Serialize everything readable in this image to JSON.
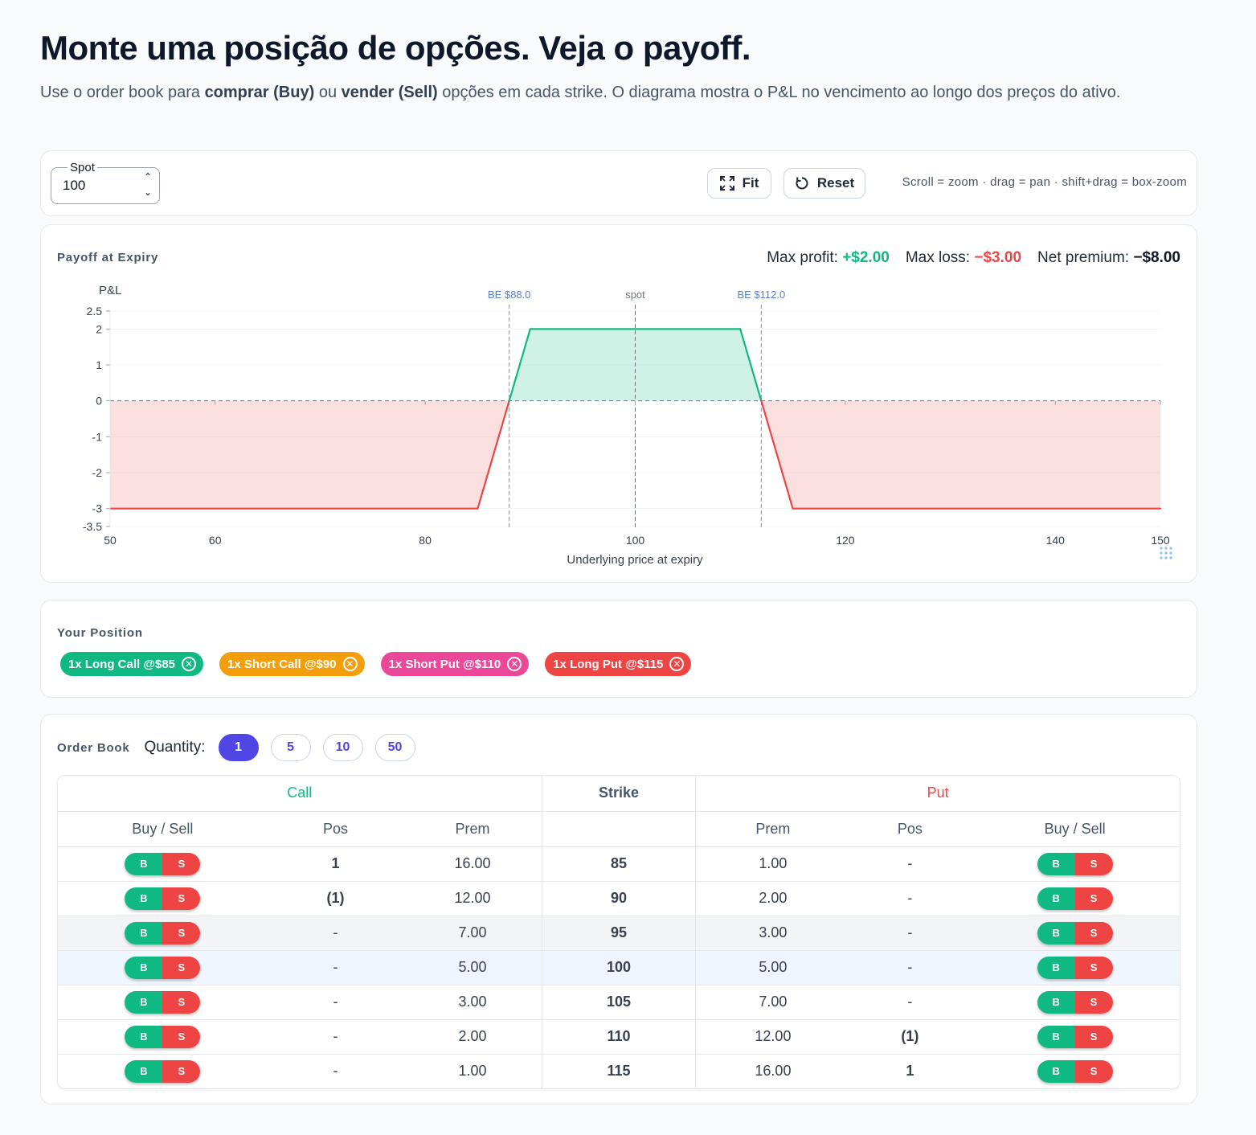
{
  "page": {
    "title": "Monte uma posição de opções. Veja o payoff.",
    "subtitle_parts": [
      "Use o order book para ",
      "comprar (Buy)",
      " ou ",
      "vender (Sell)",
      " opções em cada strike. O diagrama mostra o P&L no vencimento ao longo dos preços do ativo."
    ]
  },
  "toolbar": {
    "spot_label": "Spot",
    "spot_value": "100",
    "fit_label": "Fit",
    "reset_label": "Reset",
    "hint": "Scroll = zoom · drag = pan · shift+drag = box-zoom"
  },
  "payoff": {
    "title": "Payoff at Expiry",
    "max_profit_label": "Max profit:",
    "max_profit_value": "+$2.00",
    "max_loss_label": "Max loss:",
    "max_loss_value": "−$3.00",
    "net_premium_label": "Net premium:",
    "net_premium_value": "−$8.00",
    "colors": {
      "profit": "#10b981",
      "loss": "#ef4444",
      "marker": "#6b8fd6",
      "spot": "#6b7280"
    }
  },
  "chart_data": {
    "type": "line",
    "ylabel": "P&L",
    "xlabel": "Underlying price at expiry",
    "xlim": [
      50,
      150
    ],
    "ylim": [
      -3.5,
      2.5
    ],
    "x_ticks": [
      50,
      60,
      80,
      100,
      120,
      140,
      150
    ],
    "y_ticks": [
      2.5,
      2,
      1,
      0,
      -1,
      -2,
      -3,
      -3.5
    ],
    "y_tick_labels": [
      "2.5",
      "2",
      "1",
      "0",
      "-1",
      "-2",
      "-3",
      "-3.5"
    ],
    "series": [
      {
        "x": [
          50,
          85,
          90,
          110,
          115,
          150
        ],
        "y": [
          -3,
          -3,
          2,
          2,
          -3,
          -3
        ]
      }
    ],
    "markers": [
      {
        "x": 88,
        "label": "BE $88.0"
      },
      {
        "x": 100,
        "label": "spot"
      },
      {
        "x": 112,
        "label": "BE $112.0"
      }
    ],
    "grid": true
  },
  "position": {
    "title": "Your Position",
    "chips": [
      {
        "label": "1x Long Call @$85",
        "color": "#10b981"
      },
      {
        "label": "1x Short Call @$90",
        "color": "#f59e0b"
      },
      {
        "label": "1x Short Put @$110",
        "color": "#ec4899"
      },
      {
        "label": "1x Long Put @$115",
        "color": "#ef4444"
      }
    ]
  },
  "orderbook": {
    "title": "Order Book",
    "quantity_label": "Quantity:",
    "quantities": [
      "1",
      "5",
      "10",
      "50"
    ],
    "active_quantity": "1",
    "group_call": "Call",
    "group_strike": "Strike",
    "group_put": "Put",
    "col_buysell": "Buy / Sell",
    "col_pos": "Pos",
    "col_prem": "Prem",
    "buy_label": "B",
    "sell_label": "S",
    "rows": [
      {
        "strike": "85",
        "call_pos": "1",
        "call_prem": "16.00",
        "put_prem": "1.00",
        "put_pos": "-"
      },
      {
        "strike": "90",
        "call_pos": "(1)",
        "call_prem": "12.00",
        "put_prem": "2.00",
        "put_pos": "-"
      },
      {
        "strike": "95",
        "call_pos": "-",
        "call_prem": "7.00",
        "put_prem": "3.00",
        "put_pos": "-"
      },
      {
        "strike": "100",
        "call_pos": "-",
        "call_prem": "5.00",
        "put_prem": "5.00",
        "put_pos": "-"
      },
      {
        "strike": "105",
        "call_pos": "-",
        "call_prem": "3.00",
        "put_prem": "7.00",
        "put_pos": "-"
      },
      {
        "strike": "110",
        "call_pos": "-",
        "call_prem": "2.00",
        "put_prem": "12.00",
        "put_pos": "(1)"
      },
      {
        "strike": "115",
        "call_pos": "-",
        "call_prem": "1.00",
        "put_prem": "16.00",
        "put_pos": "1"
      }
    ]
  }
}
